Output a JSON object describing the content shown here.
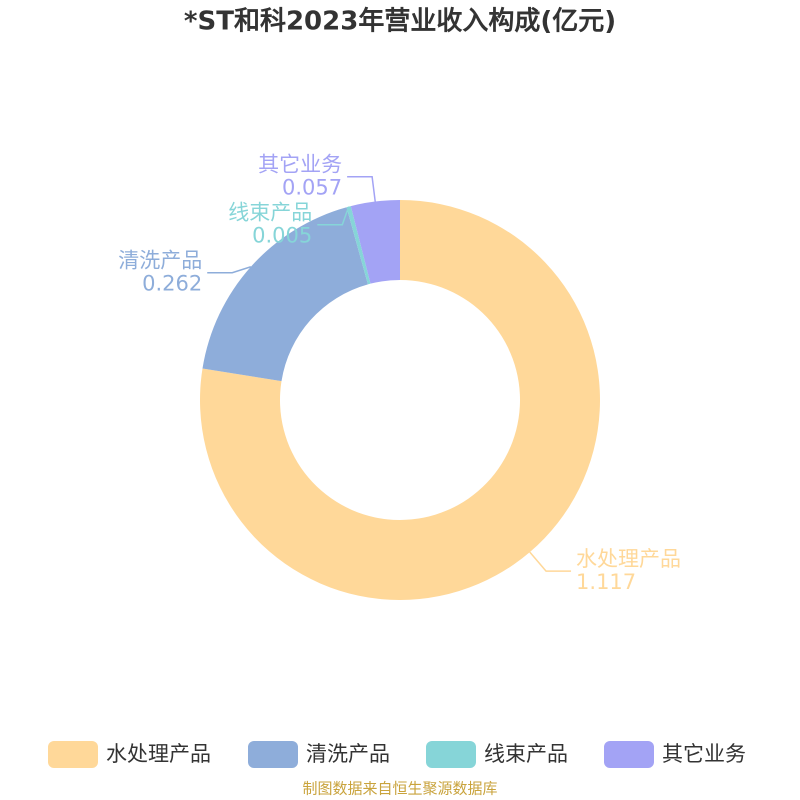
{
  "chart_data": {
    "type": "donut",
    "title": "*ST和科2023年营业收入构成(亿元)",
    "categories": [
      "水处理产品",
      "清洗产品",
      "线束产品",
      "其它业务"
    ],
    "values": [
      1.117,
      0.262,
      0.005,
      0.057
    ],
    "colors": [
      "#ffd899",
      "#8eadda",
      "#86d5d8",
      "#a3a3f5"
    ],
    "source": "制图数据来自恒生聚源数据库"
  }
}
